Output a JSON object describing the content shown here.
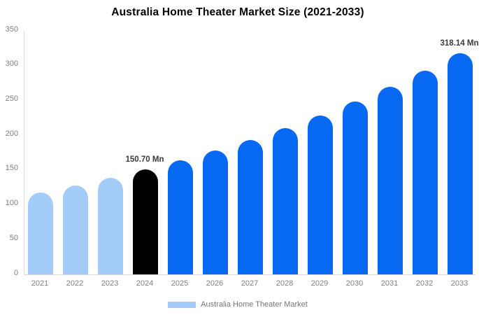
{
  "title": "Australia Home Theater Market Size (2021-2033)",
  "colors": {
    "light_blue": "#a3cdf8",
    "bright_blue": "#0768f2",
    "black": "#000000",
    "axis_line": "#dcdcdc",
    "tick_text": "#7f7f7f",
    "data_label_text": "#3b3b3b",
    "legend_text": "#757575",
    "background": "#ffffff"
  },
  "legend": {
    "label": "Australia Home Theater Market",
    "swatch_color": "#a3cdf8"
  },
  "chart_data": {
    "type": "bar",
    "title": "Australia Home Theater Market Size (2021-2033)",
    "xlabel": "",
    "ylabel": "",
    "categories": [
      "2021",
      "2022",
      "2023",
      "2024",
      "2025",
      "2026",
      "2027",
      "2028",
      "2029",
      "2030",
      "2031",
      "2032",
      "2033"
    ],
    "values": [
      117.46,
      127.63,
      138.69,
      150.7,
      163.75,
      177.93,
      193.34,
      210.08,
      228.27,
      248.04,
      269.52,
      292.86,
      318.14
    ],
    "bar_color_keys": [
      "light_blue",
      "light_blue",
      "light_blue",
      "black",
      "bright_blue",
      "bright_blue",
      "bright_blue",
      "bright_blue",
      "bright_blue",
      "bright_blue",
      "bright_blue",
      "bright_blue",
      "bright_blue"
    ],
    "unit": "Mn",
    "data_labels": [
      {
        "category": "2024",
        "text": "150.70 Mn"
      },
      {
        "category": "2033",
        "text": "318.14 Mn"
      }
    ],
    "yticks": [
      0,
      50,
      100,
      150,
      200,
      250,
      300,
      350
    ],
    "ylim": [
      0,
      350
    ],
    "gridlines": false,
    "legend_position": "bottom",
    "legend_entries": [
      "Australia Home Theater Market"
    ]
  }
}
